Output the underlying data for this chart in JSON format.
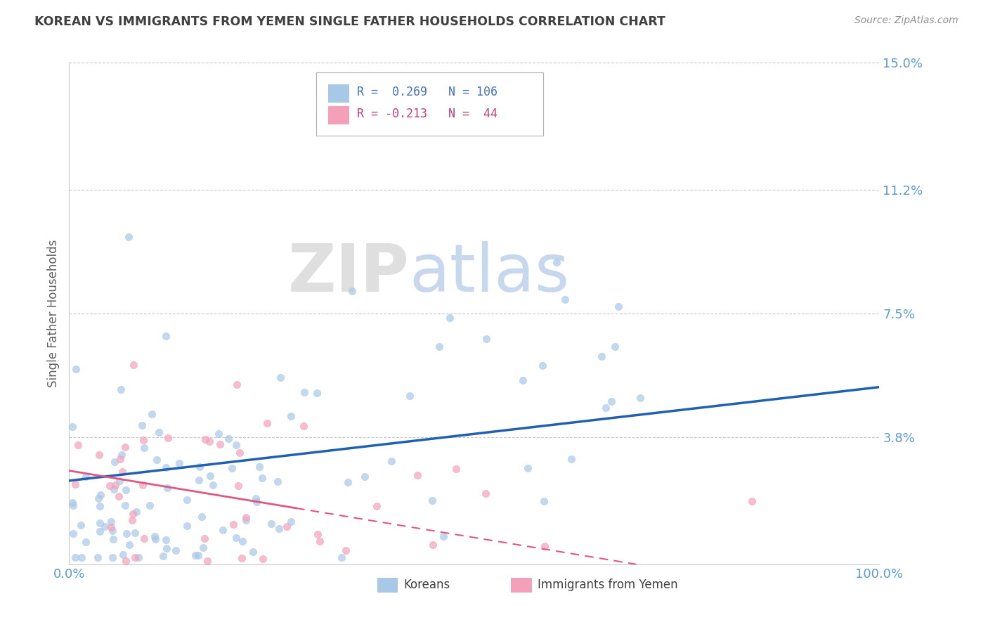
{
  "title": "KOREAN VS IMMIGRANTS FROM YEMEN SINGLE FATHER HOUSEHOLDS CORRELATION CHART",
  "source": "Source: ZipAtlas.com",
  "ylabel": "Single Father Households",
  "xlabel": "",
  "xlim": [
    0,
    1.0
  ],
  "ylim": [
    0,
    0.15
  ],
  "yticks": [
    0.038,
    0.075,
    0.112,
    0.15
  ],
  "ytick_labels": [
    "3.8%",
    "7.5%",
    "11.2%",
    "15.0%"
  ],
  "xticks": [
    0.0,
    1.0
  ],
  "xtick_labels": [
    "0.0%",
    "100.0%"
  ],
  "korean_color": "#a8c8e8",
  "yemen_color": "#f4a0b8",
  "korean_line_color": "#2060b0",
  "yemen_line_color": "#e05880",
  "watermark_zip": "ZIP",
  "watermark_atlas": "atlas",
  "korean_R": 0.269,
  "korean_N": 106,
  "yemen_R": -0.213,
  "yemen_N": 44,
  "bg_color": "#ffffff",
  "grid_color": "#c8c8c8",
  "tick_color": "#5b9bd5",
  "title_color": "#404040",
  "source_color": "#909090",
  "legend_text_blue": "#4472c4",
  "legend_text_pink": "#c0407a"
}
